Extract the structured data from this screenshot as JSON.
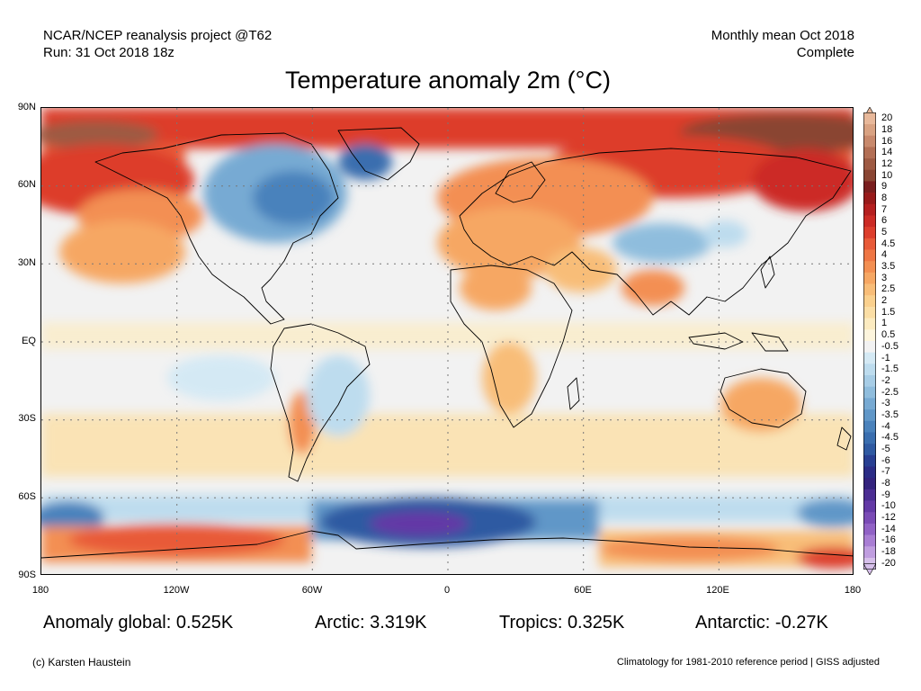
{
  "header": {
    "source_line1": "NCAR/NCEP reanalysis project @T62",
    "source_line2": "Run: 31 Oct 2018 18z",
    "period_line1": "Monthly mean Oct 2018",
    "period_line2": "Complete"
  },
  "title": "Temperature anomaly 2m (°C)",
  "axes": {
    "lat_labels": [
      "90N",
      "60N",
      "30N",
      "EQ",
      "30S",
      "60S",
      "90S"
    ],
    "lon_labels": [
      "180",
      "120W",
      "60W",
      "0",
      "60E",
      "120E",
      "180"
    ]
  },
  "colorbar": {
    "labels": [
      "20",
      "18",
      "16",
      "14",
      "12",
      "10",
      "9",
      "8",
      "7",
      "6",
      "5",
      "4.5",
      "4",
      "3.5",
      "3",
      "2.5",
      "2",
      "1.5",
      "1",
      "0.5",
      "-0.5",
      "-1",
      "-1.5",
      "-2",
      "-2.5",
      "-3",
      "-3.5",
      "-4",
      "-4.5",
      "-5",
      "-6",
      "-7",
      "-8",
      "-9",
      "-10",
      "-12",
      "-14",
      "-16",
      "-18",
      "-20"
    ],
    "colors": [
      "#e8b89a",
      "#d9a282",
      "#c8896c",
      "#b36f55",
      "#9e5a43",
      "#8a4533",
      "#7a1e1e",
      "#981a1a",
      "#b51f1f",
      "#cc2b25",
      "#dd3e2c",
      "#e85a38",
      "#ef7644",
      "#f38f52",
      "#f6a763",
      "#f8bd78",
      "#fad08d",
      "#fbdea5",
      "#fcebc0",
      "#fdf5dd",
      "#f2f2f2",
      "#d4e9f4",
      "#bddcee",
      "#a7cde6",
      "#8fbddd",
      "#77aad3",
      "#6097c8",
      "#4a82bc",
      "#3a6eaf",
      "#2f5aa2",
      "#283f92",
      "#2b2c86",
      "#33237e",
      "#4b2d93",
      "#6339a6",
      "#7a4bb6",
      "#9162c6",
      "#a97ed4",
      "#c09ee0",
      "#d6bfea"
    ],
    "neutral_color": "#f2f2f2"
  },
  "stats": {
    "global": "Anomaly global: 0.525K",
    "arctic": "Arctic: 3.319K",
    "tropics": "Tropics: 0.325K",
    "antarctic": "Antarctic: -0.27K"
  },
  "footer": {
    "credit": "(c) Karsten Haustein",
    "note": "Climatology for 1981-2010 reference period | GISS adjusted"
  }
}
